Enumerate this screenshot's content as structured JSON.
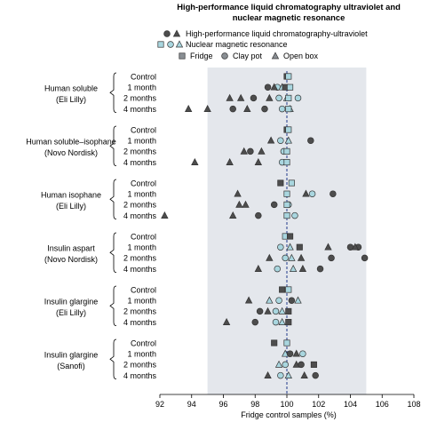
{
  "chart_data": {
    "type": "scatter",
    "title_lines": [
      "High-performance liquid chromatography ultraviolet and",
      "nuclear magnetic resonance"
    ],
    "xlabel": "Fridge control samples (%)",
    "xlim": [
      92,
      108
    ],
    "x_ticks": [
      "92",
      "94",
      "96",
      "98",
      "100",
      "102",
      "104",
      "106",
      "108"
    ],
    "reference_line_x": 100,
    "shaded_band": [
      95,
      105
    ],
    "colors": {
      "hplc": "#4d4d4d",
      "nmr": "#a9d6df",
      "band": "#e4e7ec",
      "legend_key": "#8a8f94",
      "reference_line": "#1f3a8a"
    },
    "legend": {
      "methods": [
        {
          "key": "hplc",
          "label": "High-performance liquid chromatography-ultraviolet"
        },
        {
          "key": "nmr",
          "label": "Nuclear magnetic resonance"
        }
      ],
      "shapes": [
        {
          "shape": "square",
          "label": "Fridge"
        },
        {
          "shape": "circle",
          "label": "Clay pot"
        },
        {
          "shape": "triangle",
          "label": "Open box"
        }
      ]
    },
    "groups": [
      {
        "name_lines": [
          "Human soluble",
          "(Eli Lilly)"
        ],
        "rows": [
          {
            "label": "Control",
            "points": [
              [
                "hplc",
                "square",
                100.0
              ],
              [
                "nmr",
                "square",
                100.1
              ]
            ]
          },
          {
            "label": "1 month",
            "points": [
              [
                "hplc",
                "circle",
                98.8
              ],
              [
                "nmr",
                "circle",
                99.4
              ],
              [
                "hplc",
                "triangle",
                99.2
              ],
              [
                "nmr",
                "triangle",
                99.7
              ],
              [
                "hplc",
                "square",
                99.9
              ],
              [
                "nmr",
                "square",
                100.2
              ]
            ]
          },
          {
            "label": "2 months",
            "points": [
              [
                "hplc",
                "triangle",
                96.4
              ],
              [
                "hplc",
                "triangle",
                97.1
              ],
              [
                "hplc",
                "circle",
                97.9
              ],
              [
                "hplc",
                "triangle",
                98.9
              ],
              [
                "nmr",
                "circle",
                99.5
              ],
              [
                "nmr",
                "triangle",
                100.0
              ],
              [
                "nmr",
                "circle",
                100.7
              ],
              [
                "nmr",
                "square",
                100.1
              ]
            ]
          },
          {
            "label": "4 months",
            "points": [
              [
                "hplc",
                "triangle",
                93.8
              ],
              [
                "hplc",
                "triangle",
                95.0
              ],
              [
                "hplc",
                "circle",
                96.6
              ],
              [
                "hplc",
                "triangle",
                97.5
              ],
              [
                "hplc",
                "circle",
                98.6
              ],
              [
                "nmr",
                "circle",
                99.7
              ],
              [
                "nmr",
                "triangle",
                100.2
              ],
              [
                "nmr",
                "square",
                100.1
              ]
            ]
          }
        ]
      },
      {
        "name_lines": [
          "Human soluble–isophane",
          "(Novo Nordisk)"
        ],
        "rows": [
          {
            "label": "Control",
            "points": [
              [
                "hplc",
                "square",
                100.0
              ],
              [
                "nmr",
                "square",
                100.1
              ]
            ]
          },
          {
            "label": "1 month",
            "points": [
              [
                "hplc",
                "triangle",
                99.0
              ],
              [
                "nmr",
                "circle",
                99.6
              ],
              [
                "nmr",
                "triangle",
                100.1
              ],
              [
                "hplc",
                "circle",
                101.5
              ]
            ]
          },
          {
            "label": "2 months",
            "points": [
              [
                "hplc",
                "triangle",
                97.3
              ],
              [
                "hplc",
                "circle",
                97.7
              ],
              [
                "hplc",
                "triangle",
                98.4
              ],
              [
                "nmr",
                "circle",
                99.8
              ],
              [
                "nmr",
                "square",
                100.0
              ]
            ]
          },
          {
            "label": "4 months",
            "points": [
              [
                "hplc",
                "triangle",
                94.2
              ],
              [
                "hplc",
                "triangle",
                96.4
              ],
              [
                "hplc",
                "triangle",
                98.2
              ],
              [
                "nmr",
                "circle",
                99.7
              ],
              [
                "nmr",
                "square",
                100.0
              ]
            ]
          }
        ]
      },
      {
        "name_lines": [
          "Human isophane",
          "(Eli Lilly)"
        ],
        "rows": [
          {
            "label": "Control",
            "points": [
              [
                "hplc",
                "square",
                99.6
              ],
              [
                "nmr",
                "square",
                100.3
              ]
            ]
          },
          {
            "label": "1 month",
            "points": [
              [
                "hplc",
                "triangle",
                96.9
              ],
              [
                "hplc",
                "triangle",
                101.2
              ],
              [
                "nmr",
                "circle",
                101.6
              ],
              [
                "hplc",
                "circle",
                102.9
              ],
              [
                "nmr",
                "square",
                100.0
              ]
            ]
          },
          {
            "label": "2 months",
            "points": [
              [
                "hplc",
                "triangle",
                97.0
              ],
              [
                "hplc",
                "triangle",
                97.4
              ],
              [
                "hplc",
                "circle",
                99.2
              ],
              [
                "nmr",
                "circle",
                100.1
              ],
              [
                "nmr",
                "square",
                100.0
              ]
            ]
          },
          {
            "label": "4 months",
            "points": [
              [
                "hplc",
                "triangle",
                92.3
              ],
              [
                "hplc",
                "triangle",
                96.6
              ],
              [
                "hplc",
                "circle",
                98.2
              ],
              [
                "nmr",
                "circle",
                100.5
              ],
              [
                "nmr",
                "square",
                100.0
              ]
            ]
          }
        ]
      },
      {
        "name_lines": [
          "Insulin aspart",
          "(Novo Nordisk)"
        ],
        "rows": [
          {
            "label": "Control",
            "points": [
              [
                "nmr",
                "square",
                99.9
              ],
              [
                "hplc",
                "square",
                100.2
              ]
            ]
          },
          {
            "label": "1 month",
            "points": [
              [
                "nmr",
                "circle",
                99.6
              ],
              [
                "nmr",
                "triangle",
                100.2
              ],
              [
                "hplc",
                "square",
                100.8
              ],
              [
                "hplc",
                "triangle",
                102.6
              ],
              [
                "hplc",
                "circle",
                104.0
              ],
              [
                "hplc",
                "circle",
                104.5
              ],
              [
                "hplc",
                "triangle",
                104.3
              ]
            ]
          },
          {
            "label": "2 months",
            "points": [
              [
                "hplc",
                "triangle",
                98.9
              ],
              [
                "nmr",
                "circle",
                99.9
              ],
              [
                "nmr",
                "triangle",
                100.3
              ],
              [
                "hplc",
                "triangle",
                100.9
              ],
              [
                "hplc",
                "circle",
                102.8
              ],
              [
                "hplc",
                "circle",
                104.9
              ]
            ]
          },
          {
            "label": "4 months",
            "points": [
              [
                "hplc",
                "triangle",
                98.2
              ],
              [
                "nmr",
                "circle",
                99.4
              ],
              [
                "nmr",
                "triangle",
                100.4
              ],
              [
                "hplc",
                "triangle",
                101.0
              ],
              [
                "hplc",
                "circle",
                102.1
              ]
            ]
          }
        ]
      },
      {
        "name_lines": [
          "Insulin glargine",
          "(Eli Lilly)"
        ],
        "rows": [
          {
            "label": "Control",
            "points": [
              [
                "hplc",
                "square",
                99.7
              ],
              [
                "nmr",
                "square",
                100.1
              ]
            ]
          },
          {
            "label": "1 month",
            "points": [
              [
                "hplc",
                "triangle",
                97.6
              ],
              [
                "nmr",
                "triangle",
                98.9
              ],
              [
                "nmr",
                "circle",
                99.5
              ],
              [
                "hplc",
                "circle",
                100.3
              ],
              [
                "nmr",
                "triangle",
                100.7
              ]
            ]
          },
          {
            "label": "2 months",
            "points": [
              [
                "hplc",
                "circle",
                98.3
              ],
              [
                "hplc",
                "triangle",
                98.8
              ],
              [
                "nmr",
                "circle",
                99.3
              ],
              [
                "nmr",
                "triangle",
                99.7
              ],
              [
                "hplc",
                "square",
                100.1
              ]
            ]
          },
          {
            "label": "4 months",
            "points": [
              [
                "hplc",
                "triangle",
                96.2
              ],
              [
                "hplc",
                "circle",
                98.0
              ],
              [
                "nmr",
                "circle",
                99.3
              ],
              [
                "nmr",
                "triangle",
                99.7
              ],
              [
                "hplc",
                "square",
                100.1
              ]
            ]
          }
        ]
      },
      {
        "name_lines": [
          "Insulin glargine",
          "(Sanofi)"
        ],
        "rows": [
          {
            "label": "Control",
            "points": [
              [
                "hplc",
                "square",
                99.2
              ],
              [
                "nmr",
                "square",
                100.0
              ]
            ]
          },
          {
            "label": "1 month",
            "points": [
              [
                "nmr",
                "triangle",
                99.9
              ],
              [
                "hplc",
                "circle",
                100.2
              ],
              [
                "hplc",
                "triangle",
                100.6
              ],
              [
                "nmr",
                "circle",
                101.0
              ]
            ]
          },
          {
            "label": "2 months",
            "points": [
              [
                "nmr",
                "triangle",
                99.5
              ],
              [
                "nmr",
                "circle",
                99.9
              ],
              [
                "hplc",
                "triangle",
                100.6
              ],
              [
                "hplc",
                "circle",
                100.9
              ],
              [
                "hplc",
                "square",
                101.7
              ]
            ]
          },
          {
            "label": "4 months",
            "points": [
              [
                "hplc",
                "triangle",
                98.8
              ],
              [
                "nmr",
                "circle",
                99.6
              ],
              [
                "nmr",
                "triangle",
                100.1
              ],
              [
                "hplc",
                "triangle",
                101.1
              ],
              [
                "hplc",
                "circle",
                101.8
              ]
            ]
          }
        ]
      }
    ]
  }
}
